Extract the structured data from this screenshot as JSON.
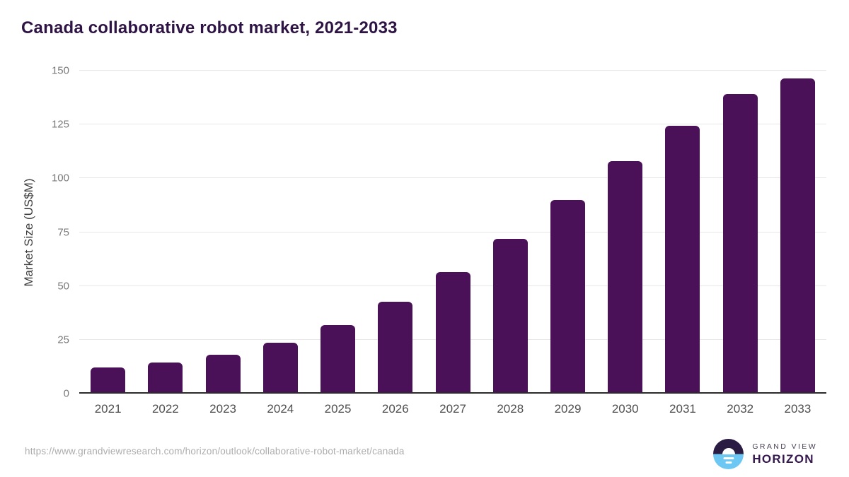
{
  "header": {
    "title": "Canada collaborative robot market, 2021-2033"
  },
  "chart_data": {
    "type": "bar",
    "title": "Canada collaborative robot market, 2021-2033",
    "categories": [
      "2021",
      "2022",
      "2023",
      "2024",
      "2025",
      "2026",
      "2027",
      "2028",
      "2029",
      "2030",
      "2031",
      "2032",
      "2033"
    ],
    "values": [
      12.3,
      14.4,
      18.0,
      23.7,
      32.0,
      42.6,
      56.3,
      72.0,
      90.1,
      108.0,
      124.5,
      139.2,
      146.4
    ],
    "xlabel": "",
    "ylabel": "Market Size (US$M)",
    "ylim": [
      0,
      150
    ],
    "yticks": [
      0,
      25,
      50,
      75,
      100,
      125,
      150
    ],
    "grid": true,
    "legend": false,
    "bar_color": "#4a1158",
    "gridline_color": "#e7e7e7",
    "axis_line_color": "#2b2b2b"
  },
  "footer": {
    "source_url": "https://www.grandviewresearch.com/horizon/outlook/collaborative-robot-market/canada",
    "logo": {
      "line1": "GRAND VIEW",
      "line2": "HORIZON",
      "mark_top_color": "#2b1c43",
      "mark_bottom_color": "#6cc8f2"
    }
  },
  "colors": {
    "title": "#2e1445",
    "ytick_label": "#7a7a7a",
    "xtick_label": "#4f4f4f",
    "source_url": "#acacac"
  }
}
